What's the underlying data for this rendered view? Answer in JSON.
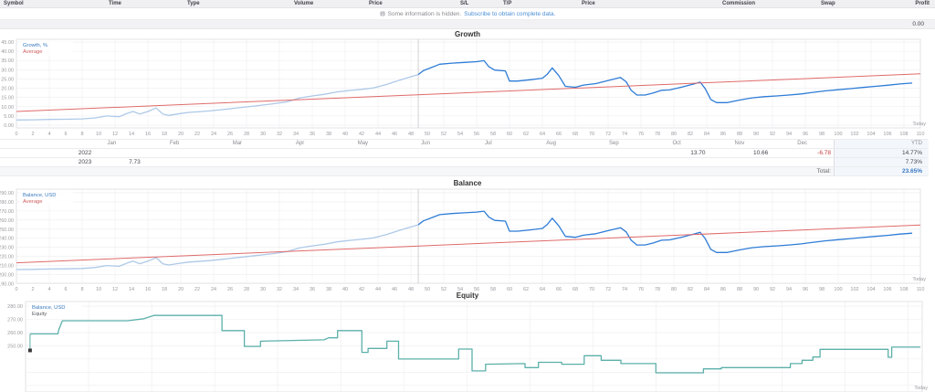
{
  "trade_table": {
    "columns": [
      "Symbol",
      "Time",
      "Type",
      "Volume",
      "Price",
      "S/L",
      "T/P",
      "Price",
      "Commission",
      "Swap",
      "Profit"
    ],
    "notice": {
      "icon": "info-icon",
      "text": "Some information is hidden.",
      "link_text": "Subscribe to obtain complete data."
    },
    "profit_total": "0.00"
  },
  "colors": {
    "line_current": "#2e7cd6",
    "line_previous": "#aec9e8",
    "average_line": "#e06a6a",
    "equity_line": "#5cb0aa",
    "link": "#4a8fd4",
    "negative": "#c23b3b",
    "total_value": "#3a78c2",
    "value_text": "#474750",
    "axis_text": "#9a9aa0",
    "grid": "#ededf0",
    "divider": "#d2d2d6",
    "ytd_col_bg": "#f3f7fb",
    "total_row_bg": "#f6f7f8",
    "marker": "#3a3a3a"
  },
  "week_ticks": [
    0,
    2,
    4,
    6,
    8,
    10,
    12,
    14,
    16,
    18,
    20,
    22,
    24,
    26,
    28,
    30,
    32,
    34,
    36,
    38,
    40,
    42,
    44,
    46,
    48,
    50,
    52,
    54,
    56,
    58,
    60,
    62,
    64,
    66,
    68,
    70,
    72,
    74,
    76,
    78,
    80,
    82,
    84,
    86,
    88,
    90,
    92,
    94,
    96,
    98,
    100,
    102,
    104,
    106,
    108,
    110
  ],
  "growth_chart": {
    "title": "Growth",
    "legend": [
      {
        "label": "Growth, %",
        "color": "#3a7abf"
      },
      {
        "label": "Average",
        "color": "#d05f5f"
      }
    ],
    "today_label": "Today",
    "divider_x": 48.9,
    "y_ticks": [
      {
        "v": 45,
        "t": "45.00"
      },
      {
        "v": 40,
        "t": "40.00"
      },
      {
        "v": 35,
        "t": "35.00"
      },
      {
        "v": 30,
        "t": "30.00"
      },
      {
        "v": 25,
        "t": "25.00"
      },
      {
        "v": 20,
        "t": "20.00"
      },
      {
        "v": 15,
        "t": "15.00"
      },
      {
        "v": 10,
        "t": "10.00"
      },
      {
        "v": 5,
        "t": "5.00"
      },
      {
        "v": 0,
        "t": "0.00"
      }
    ],
    "series": [
      {
        "name": "growth-2022",
        "role": "previous",
        "points": [
          [
            0,
            2.8
          ],
          [
            2,
            2.9
          ],
          [
            4,
            3.1
          ],
          [
            6,
            3.2
          ],
          [
            8,
            3.4
          ],
          [
            9.5,
            3.9
          ],
          [
            11,
            5.0
          ],
          [
            12.5,
            4.6
          ],
          [
            13.5,
            6.4
          ],
          [
            14.2,
            7.4
          ],
          [
            15,
            6.0
          ],
          [
            16,
            7.4
          ],
          [
            17,
            9.3
          ],
          [
            17.8,
            6.0
          ],
          [
            18.5,
            5.3
          ],
          [
            20,
            6.3
          ],
          [
            21,
            6.9
          ],
          [
            22,
            7.2
          ],
          [
            23.5,
            7.7
          ],
          [
            25,
            8.4
          ],
          [
            27,
            9.4
          ],
          [
            29,
            10.4
          ],
          [
            31,
            11.4
          ],
          [
            33,
            12.7
          ],
          [
            34.5,
            14.8
          ],
          [
            36,
            15.8
          ],
          [
            37.5,
            16.7
          ],
          [
            39,
            18.0
          ],
          [
            40.5,
            18.8
          ],
          [
            42,
            19.4
          ],
          [
            43.5,
            20.2
          ],
          [
            45,
            22.0
          ],
          [
            46.5,
            24.2
          ],
          [
            48,
            26.2
          ],
          [
            48.9,
            27.4
          ]
        ]
      },
      {
        "name": "growth-2023",
        "role": "current",
        "points": [
          [
            48.9,
            27.4
          ],
          [
            49.5,
            29.5
          ],
          [
            50.5,
            31.2
          ],
          [
            51.5,
            33.0
          ],
          [
            53,
            33.6
          ],
          [
            54.5,
            34.0
          ],
          [
            56,
            34.4
          ],
          [
            56.9,
            34.9
          ],
          [
            57.5,
            31.6
          ],
          [
            58.2,
            29.8
          ],
          [
            59.5,
            29.4
          ],
          [
            60,
            23.9
          ],
          [
            61,
            23.9
          ],
          [
            62.5,
            24.6
          ],
          [
            64,
            25.4
          ],
          [
            64.6,
            27.6
          ],
          [
            65.2,
            31.0
          ],
          [
            66,
            26.8
          ],
          [
            66.8,
            21.0
          ],
          [
            68,
            20.5
          ],
          [
            69,
            21.7
          ],
          [
            70.5,
            22.5
          ],
          [
            72,
            24.2
          ],
          [
            73.5,
            25.8
          ],
          [
            74.2,
            23.5
          ],
          [
            74.8,
            18.9
          ],
          [
            75.5,
            16.3
          ],
          [
            76.5,
            16.3
          ],
          [
            77.5,
            17.4
          ],
          [
            78.5,
            18.9
          ],
          [
            79.5,
            19.1
          ],
          [
            81,
            20.6
          ],
          [
            82.5,
            22.4
          ],
          [
            83.2,
            23.3
          ],
          [
            83.8,
            19.9
          ],
          [
            84.5,
            13.9
          ],
          [
            85.2,
            12.2
          ],
          [
            86.5,
            12.2
          ],
          [
            88,
            13.6
          ],
          [
            89.5,
            14.8
          ],
          [
            91,
            15.4
          ],
          [
            92.5,
            15.8
          ],
          [
            94,
            16.3
          ],
          [
            95.5,
            16.9
          ],
          [
            97,
            17.8
          ],
          [
            98.5,
            18.6
          ],
          [
            100,
            19.2
          ],
          [
            101.5,
            19.8
          ],
          [
            103,
            20.4
          ],
          [
            104.5,
            21.0
          ],
          [
            106,
            21.6
          ],
          [
            107.5,
            22.3
          ],
          [
            109,
            22.8
          ]
        ]
      },
      {
        "name": "growth-average",
        "role": "average",
        "points": [
          [
            0,
            7.4
          ],
          [
            110,
            27.8
          ]
        ]
      }
    ]
  },
  "month_table": {
    "months": [
      "Jan",
      "Feb",
      "Mar",
      "Apr",
      "May",
      "Jun",
      "Jul",
      "Aug",
      "Sep",
      "Oct",
      "Nov",
      "Dec"
    ],
    "ytd_header": "YTD",
    "rows": [
      {
        "year": "2022",
        "cells": [
          "",
          "",
          "",
          "",
          "",
          "",
          "",
          "",
          "",
          "13.70",
          "10.66",
          "-6.78"
        ],
        "ytd": "14.77%"
      },
      {
        "year": "2023",
        "cells": [
          "7.73",
          "",
          "",
          "",
          "",
          "",
          "",
          "",
          "",
          "",
          "",
          ""
        ],
        "ytd": "7.73%"
      }
    ],
    "total_label": "Total:",
    "total_value": "23.65%"
  },
  "balance_chart": {
    "title": "Balance",
    "legend": [
      {
        "label": "Balance, USD",
        "color": "#3a7abf"
      },
      {
        "label": "Average",
        "color": "#d05f5f"
      }
    ],
    "today_label": "Today",
    "divider_x": 48.9,
    "y_ticks": [
      {
        "v": 290,
        "t": "290.00"
      },
      {
        "v": 280,
        "t": "280.00"
      },
      {
        "v": 270,
        "t": "270.00"
      },
      {
        "v": 260,
        "t": "260.00"
      },
      {
        "v": 250,
        "t": "250.00"
      },
      {
        "v": 240,
        "t": "240.00"
      },
      {
        "v": 230,
        "t": "230.00"
      },
      {
        "v": 220,
        "t": "220.00"
      },
      {
        "v": 210,
        "t": "210.00"
      },
      {
        "v": 200,
        "t": "200.00"
      },
      {
        "v": 190,
        "t": "190.00"
      }
    ],
    "series": [
      {
        "name": "balance-2022",
        "role": "previous",
        "points": [
          [
            0,
            205.6
          ],
          [
            2,
            205.8
          ],
          [
            4,
            206.2
          ],
          [
            6,
            206.4
          ],
          [
            8,
            206.8
          ],
          [
            9.5,
            207.8
          ],
          [
            11,
            210.0
          ],
          [
            12.5,
            209.2
          ],
          [
            13.5,
            212.8
          ],
          [
            14.2,
            214.8
          ],
          [
            15,
            212.0
          ],
          [
            16,
            214.8
          ],
          [
            17,
            218.6
          ],
          [
            17.8,
            212.0
          ],
          [
            18.5,
            210.6
          ],
          [
            20,
            212.6
          ],
          [
            21,
            213.8
          ],
          [
            22,
            214.4
          ],
          [
            23.5,
            215.4
          ],
          [
            25,
            216.8
          ],
          [
            27,
            218.8
          ],
          [
            29,
            220.8
          ],
          [
            31,
            222.8
          ],
          [
            33,
            225.4
          ],
          [
            34.5,
            229.6
          ],
          [
            36,
            231.6
          ],
          [
            37.5,
            233.4
          ],
          [
            39,
            236.0
          ],
          [
            40.5,
            237.6
          ],
          [
            42,
            238.8
          ],
          [
            43.5,
            240.4
          ],
          [
            45,
            244.0
          ],
          [
            46.5,
            248.4
          ],
          [
            48,
            252.4
          ],
          [
            48.9,
            254.8
          ]
        ]
      },
      {
        "name": "balance-2023",
        "role": "current",
        "points": [
          [
            48.9,
            254.8
          ],
          [
            49.5,
            259.0
          ],
          [
            50.5,
            262.4
          ],
          [
            51.5,
            266.0
          ],
          [
            53,
            267.2
          ],
          [
            54.5,
            268.0
          ],
          [
            56,
            268.8
          ],
          [
            56.9,
            269.8
          ],
          [
            57.5,
            263.2
          ],
          [
            58.2,
            259.6
          ],
          [
            59.5,
            258.8
          ],
          [
            60,
            247.8
          ],
          [
            61,
            247.8
          ],
          [
            62.5,
            249.2
          ],
          [
            64,
            250.8
          ],
          [
            64.6,
            255.2
          ],
          [
            65.2,
            262.0
          ],
          [
            66,
            253.6
          ],
          [
            66.8,
            242.0
          ],
          [
            68,
            241.0
          ],
          [
            69,
            243.4
          ],
          [
            70.5,
            245.0
          ],
          [
            72,
            248.4
          ],
          [
            73.5,
            251.6
          ],
          [
            74.2,
            247.0
          ],
          [
            74.8,
            237.8
          ],
          [
            75.5,
            232.6
          ],
          [
            76.5,
            232.6
          ],
          [
            77.5,
            234.8
          ],
          [
            78.5,
            237.8
          ],
          [
            79.5,
            238.2
          ],
          [
            81,
            241.2
          ],
          [
            82.5,
            244.8
          ],
          [
            83.2,
            246.6
          ],
          [
            83.8,
            239.8
          ],
          [
            84.5,
            227.8
          ],
          [
            85.2,
            224.4
          ],
          [
            86.5,
            224.4
          ],
          [
            88,
            227.2
          ],
          [
            89.5,
            229.6
          ],
          [
            91,
            230.8
          ],
          [
            92.5,
            231.6
          ],
          [
            94,
            232.6
          ],
          [
            95.5,
            233.8
          ],
          [
            97,
            235.6
          ],
          [
            98.5,
            237.2
          ],
          [
            100,
            238.4
          ],
          [
            101.5,
            239.6
          ],
          [
            103,
            240.8
          ],
          [
            104.5,
            242.0
          ],
          [
            106,
            243.2
          ],
          [
            107.5,
            244.6
          ],
          [
            109,
            245.6
          ]
        ]
      },
      {
        "name": "balance-average",
        "role": "average",
        "points": [
          [
            0,
            213.0
          ],
          [
            110,
            254.5
          ]
        ]
      }
    ]
  },
  "equity_chart": {
    "title": "Equity",
    "legend": [
      {
        "label": "Balance, USD",
        "color": "#3a7abf"
      },
      {
        "label": "Equity",
        "color": "#55585c"
      }
    ],
    "today_label": "Today",
    "y_ticks": [
      {
        "v": 280,
        "t": "280.00"
      },
      {
        "v": 270,
        "t": "270.00"
      },
      {
        "v": 260,
        "t": "260.00"
      },
      {
        "v": 250,
        "t": "250.00"
      },
      {
        "v": 240,
        "t": ""
      },
      {
        "v": 230,
        "t": ""
      },
      {
        "v": 220,
        "t": ""
      }
    ],
    "start_marker": {
      "x": 0.5,
      "from": 259,
      "to": 246.5
    },
    "series": [
      {
        "name": "equity-line",
        "role": "current",
        "points": [
          [
            0.5,
            259
          ],
          [
            3.6,
            259
          ],
          [
            3.7,
            262
          ],
          [
            3.9,
            265.5
          ],
          [
            4.1,
            269
          ],
          [
            11.4,
            269
          ],
          [
            13.2,
            270.5
          ],
          [
            14.3,
            273
          ],
          [
            21.9,
            273
          ],
          [
            21.9,
            261.5
          ],
          [
            24.4,
            261.5
          ],
          [
            24.4,
            249.5
          ],
          [
            26.2,
            249.5
          ],
          [
            26.2,
            253.5
          ],
          [
            33.3,
            254.5
          ],
          [
            33.8,
            256
          ],
          [
            34.8,
            256
          ],
          [
            34.8,
            261.5
          ],
          [
            37.5,
            261.5
          ],
          [
            37.5,
            245
          ],
          [
            38.2,
            245
          ],
          [
            38.2,
            248
          ],
          [
            40.3,
            248
          ],
          [
            40.3,
            253.5
          ],
          [
            41.6,
            253.5
          ],
          [
            41.6,
            240
          ],
          [
            48.3,
            240
          ],
          [
            48.3,
            247.5
          ],
          [
            49.8,
            247.5
          ],
          [
            49.8,
            231
          ],
          [
            51.3,
            231
          ],
          [
            51.3,
            236
          ],
          [
            55.7,
            236.5
          ],
          [
            55.7,
            233.5
          ],
          [
            57.2,
            233.5
          ],
          [
            57.2,
            237.5
          ],
          [
            59.8,
            237.5
          ],
          [
            59.8,
            236
          ],
          [
            62.3,
            236
          ],
          [
            62.3,
            242.5
          ],
          [
            64.2,
            242.5
          ],
          [
            64.2,
            239
          ],
          [
            66.4,
            239
          ],
          [
            66.4,
            236.5
          ],
          [
            70.3,
            236.5
          ],
          [
            70.3,
            229.5
          ],
          [
            75.6,
            229.5
          ],
          [
            75.6,
            232.5
          ],
          [
            77.6,
            232.5
          ],
          [
            77.6,
            233.5
          ],
          [
            85.3,
            233.5
          ],
          [
            85.3,
            236.5
          ],
          [
            86.6,
            236.5
          ],
          [
            86.6,
            239
          ],
          [
            87.8,
            239
          ],
          [
            87.8,
            241.5
          ],
          [
            88.6,
            241.5
          ],
          [
            88.6,
            247.3
          ],
          [
            96.2,
            247.3
          ],
          [
            96.2,
            241.3
          ],
          [
            96.6,
            241.3
          ],
          [
            96.6,
            249
          ],
          [
            99.8,
            249
          ]
        ]
      }
    ]
  }
}
